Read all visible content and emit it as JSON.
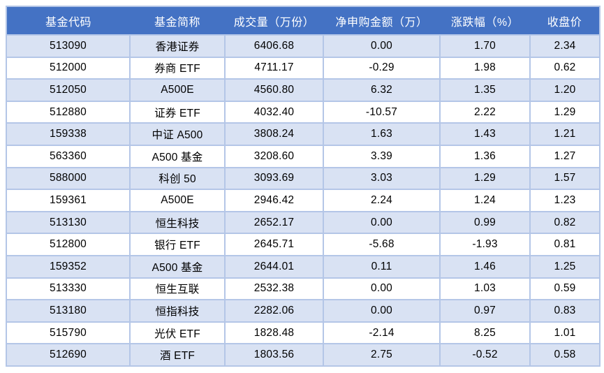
{
  "colors": {
    "header_bg": "#4472C4",
    "header_text": "#FFFFFF",
    "row_alt_bg": "#D9E2F3",
    "row_bg": "#FFFFFF",
    "border": "#B4C6E7",
    "body_text": "#000000"
  },
  "table": {
    "columns": [
      "基金代码",
      "基金简称",
      "成交量（万份）",
      "净申购金额（万）",
      "涨跌幅（%）",
      "收盘价"
    ],
    "rows": [
      [
        "513090",
        "香港证券",
        "6406.68",
        "0.00",
        "1.70",
        "2.34"
      ],
      [
        "512000",
        "券商 ETF",
        "4711.17",
        "-0.29",
        "1.98",
        "0.62"
      ],
      [
        "512050",
        "A500E",
        "4560.80",
        "6.32",
        "1.35",
        "1.20"
      ],
      [
        "512880",
        "证券 ETF",
        "4032.40",
        "-10.57",
        "2.22",
        "1.29"
      ],
      [
        "159338",
        "中证 A500",
        "3808.24",
        "1.63",
        "1.43",
        "1.21"
      ],
      [
        "563360",
        "A500 基金",
        "3208.60",
        "3.39",
        "1.36",
        "1.27"
      ],
      [
        "588000",
        "科创 50",
        "3093.69",
        "3.03",
        "1.29",
        "1.57"
      ],
      [
        "159361",
        "A500E",
        "2946.42",
        "2.24",
        "1.24",
        "1.23"
      ],
      [
        "513130",
        "恒生科技",
        "2652.17",
        "0.00",
        "0.99",
        "0.82"
      ],
      [
        "512800",
        "银行 ETF",
        "2645.71",
        "-5.68",
        "-1.93",
        "0.81"
      ],
      [
        "159352",
        "A500 基金",
        "2644.01",
        "0.11",
        "1.46",
        "1.25"
      ],
      [
        "513330",
        "恒生互联",
        "2532.38",
        "0.00",
        "1.03",
        "0.59"
      ],
      [
        "513180",
        "恒指科技",
        "2282.06",
        "0.00",
        "0.97",
        "0.83"
      ],
      [
        "515790",
        "光伏 ETF",
        "1828.48",
        "-2.14",
        "8.25",
        "1.01"
      ],
      [
        "512690",
        "酒 ETF",
        "1803.56",
        "2.75",
        "-0.52",
        "0.58"
      ]
    ]
  },
  "chart_data": {
    "type": "table",
    "title": "",
    "columns": [
      "基金代码",
      "基金简称",
      "成交量（万份）",
      "净申购金额（万）",
      "涨跌幅（%）",
      "收盘价"
    ],
    "rows": [
      {
        "基金代码": "513090",
        "基金简称": "香港证券",
        "成交量万份": 6406.68,
        "净申购金额万": 0.0,
        "涨跌幅pct": 1.7,
        "收盘价": 2.34
      },
      {
        "基金代码": "512000",
        "基金简称": "券商 ETF",
        "成交量万份": 4711.17,
        "净申购金额万": -0.29,
        "涨跌幅pct": 1.98,
        "收盘价": 0.62
      },
      {
        "基金代码": "512050",
        "基金简称": "A500E",
        "成交量万份": 4560.8,
        "净申购金额万": 6.32,
        "涨跌幅pct": 1.35,
        "收盘价": 1.2
      },
      {
        "基金代码": "512880",
        "基金简称": "证券 ETF",
        "成交量万份": 4032.4,
        "净申购金额万": -10.57,
        "涨跌幅pct": 2.22,
        "收盘价": 1.29
      },
      {
        "基金代码": "159338",
        "基金简称": "中证 A500",
        "成交量万份": 3808.24,
        "净申购金额万": 1.63,
        "涨跌幅pct": 1.43,
        "收盘价": 1.21
      },
      {
        "基金代码": "563360",
        "基金简称": "A500 基金",
        "成交量万份": 3208.6,
        "净申购金额万": 3.39,
        "涨跌幅pct": 1.36,
        "收盘价": 1.27
      },
      {
        "基金代码": "588000",
        "基金简称": "科创 50",
        "成交量万份": 3093.69,
        "净申购金额万": 3.03,
        "涨跌幅pct": 1.29,
        "收盘价": 1.57
      },
      {
        "基金代码": "159361",
        "基金简称": "A500E",
        "成交量万份": 2946.42,
        "净申购金额万": 2.24,
        "涨跌幅pct": 1.24,
        "收盘价": 1.23
      },
      {
        "基金代码": "513130",
        "基金简称": "恒生科技",
        "成交量万份": 2652.17,
        "净申购金额万": 0.0,
        "涨跌幅pct": 0.99,
        "收盘价": 0.82
      },
      {
        "基金代码": "512800",
        "基金简称": "银行 ETF",
        "成交量万份": 2645.71,
        "净申购金额万": -5.68,
        "涨跌幅pct": -1.93,
        "收盘价": 0.81
      },
      {
        "基金代码": "159352",
        "基金简称": "A500 基金",
        "成交量万份": 2644.01,
        "净申购金额万": 0.11,
        "涨跌幅pct": 1.46,
        "收盘价": 1.25
      },
      {
        "基金代码": "513330",
        "基金简称": "恒生互联",
        "成交量万份": 2532.38,
        "净申购金额万": 0.0,
        "涨跌幅pct": 1.03,
        "收盘价": 0.59
      },
      {
        "基金代码": "513180",
        "基金简称": "恒指科技",
        "成交量万份": 2282.06,
        "净申购金额万": 0.0,
        "涨跌幅pct": 0.97,
        "收盘价": 0.83
      },
      {
        "基金代码": "515790",
        "基金简称": "光伏 ETF",
        "成交量万份": 1828.48,
        "净申购金额万": -2.14,
        "涨跌幅pct": 8.25,
        "收盘价": 1.01
      },
      {
        "基金代码": "512690",
        "基金简称": "酒 ETF",
        "成交量万份": 1803.56,
        "净申购金额万": 2.75,
        "涨跌幅pct": -0.52,
        "收盘价": 0.58
      }
    ]
  }
}
